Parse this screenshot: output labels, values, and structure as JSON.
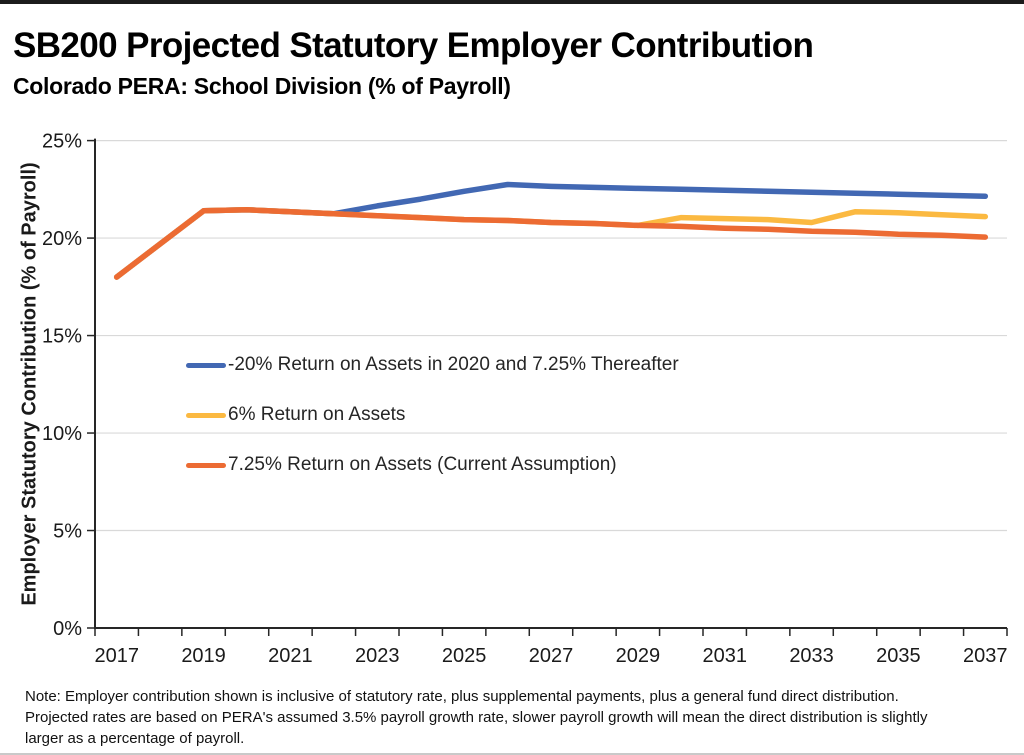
{
  "header": {
    "title": "SB200 Projected Statutory Employer Contribution",
    "subtitle": "Colorado PERA: School Division (% of Payroll)"
  },
  "chart_data": {
    "type": "line",
    "title": "SB200 Projected Statutory Employer Contribution",
    "subtitle": "Colorado PERA: School Division (% of Payroll)",
    "ylabel": "Employer Statutory Contribution (% of Payroll)",
    "xlabel": "",
    "ylim": [
      0,
      25
    ],
    "yticks": [
      0,
      5,
      10,
      15,
      20,
      25
    ],
    "ytick_labels": [
      "0%",
      "5%",
      "10%",
      "15%",
      "20%",
      "25%"
    ],
    "x": [
      2017,
      2018,
      2019,
      2020,
      2021,
      2022,
      2023,
      2024,
      2025,
      2026,
      2027,
      2028,
      2029,
      2030,
      2031,
      2032,
      2033,
      2034,
      2035,
      2036,
      2037
    ],
    "xtick_labels": [
      "2017",
      "2019",
      "2021",
      "2023",
      "2025",
      "2027",
      "2029",
      "2031",
      "2033",
      "2035",
      "2037"
    ],
    "grid": "horizontal-only",
    "legend_position": "inside-upper-left",
    "series": [
      {
        "name": "-20% Return on Assets in 2020 and 7.25% Thereafter",
        "color": "#4268B3",
        "values": [
          18.0,
          19.7,
          21.4,
          21.45,
          21.35,
          21.25,
          21.65,
          22.0,
          22.4,
          22.75,
          22.65,
          22.6,
          22.55,
          22.5,
          22.45,
          22.4,
          22.35,
          22.3,
          22.25,
          22.2,
          22.15
        ]
      },
      {
        "name": "6% Return on Assets",
        "color": "#FBB941",
        "values": [
          18.0,
          19.7,
          21.4,
          21.45,
          21.35,
          21.25,
          21.15,
          21.05,
          20.95,
          20.9,
          20.8,
          20.75,
          20.65,
          21.05,
          21.0,
          20.95,
          20.8,
          21.35,
          21.3,
          21.2,
          21.1
        ]
      },
      {
        "name": "7.25% Return on Assets (Current Assumption)",
        "color": "#EC6B33",
        "values": [
          18.0,
          19.7,
          21.4,
          21.45,
          21.35,
          21.25,
          21.15,
          21.05,
          20.95,
          20.9,
          20.8,
          20.75,
          20.65,
          20.6,
          20.5,
          20.45,
          20.35,
          20.3,
          20.2,
          20.15,
          20.05
        ]
      }
    ]
  },
  "note": {
    "lines": [
      "Note: Employer contribution shown is inclusive of statutory rate, plus supplemental payments, plus a general fund direct distribution.",
      "Projected rates are based on PERA's assumed 3.5% payroll growth rate, slower payroll growth will mean the direct distribution is slightly",
      "larger as a percentage of payroll."
    ]
  },
  "colors": {
    "gridline": "#D9D9D9",
    "axis": "#262626",
    "tick_label": "#1a1a1a"
  }
}
